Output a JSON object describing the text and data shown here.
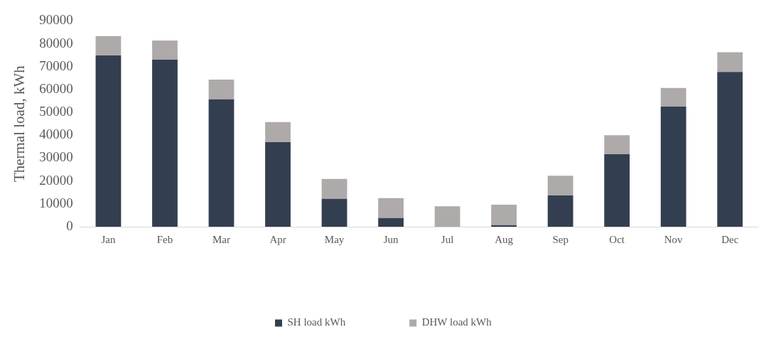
{
  "chart_data": {
    "type": "bar",
    "stacked": true,
    "ylabel": "Thermal load, kWh",
    "categories": [
      "Jan",
      "Feb",
      "Mar",
      "Apr",
      "May",
      "Jun",
      "Jul",
      "Aug",
      "Sep",
      "Oct",
      "Nov",
      "Dec"
    ],
    "series": [
      {
        "name": "SH load kWh",
        "color": "#333f50",
        "values": [
          74900,
          73000,
          55700,
          37000,
          12200,
          3800,
          0,
          700,
          13700,
          31700,
          52500,
          67700
        ]
      },
      {
        "name": "DHW load kWh",
        "color": "#aeaaaa",
        "values": [
          8500,
          8400,
          8600,
          8800,
          8700,
          8700,
          8900,
          8900,
          8600,
          8300,
          8200,
          8600
        ]
      }
    ],
    "ylim": [
      0,
      90000
    ],
    "yticks": [
      0,
      10000,
      20000,
      30000,
      40000,
      50000,
      60000,
      70000,
      80000,
      90000
    ],
    "grid": false,
    "legend": "bottom"
  }
}
